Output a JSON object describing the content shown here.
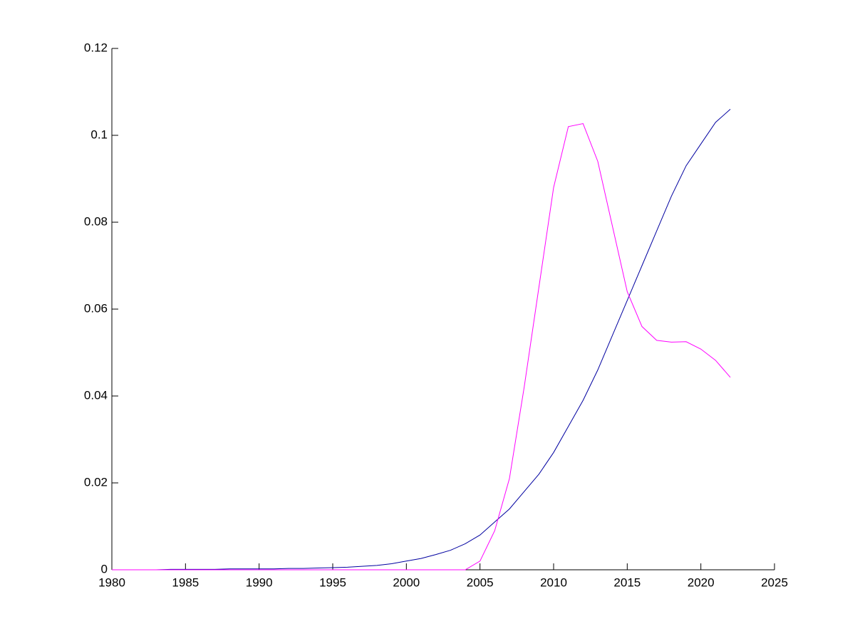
{
  "chart_data": {
    "type": "line",
    "x": [
      1980,
      1981,
      1982,
      1983,
      1984,
      1985,
      1986,
      1987,
      1988,
      1989,
      1990,
      1991,
      1992,
      1993,
      1994,
      1995,
      1996,
      1997,
      1998,
      1999,
      2000,
      2001,
      2002,
      2003,
      2004,
      2005,
      2006,
      2007,
      2008,
      2009,
      2010,
      2011,
      2012,
      2013,
      2014,
      2015,
      2016,
      2017,
      2018,
      2019,
      2020,
      2021,
      2022
    ],
    "series": [
      {
        "color": "#0000a0",
        "values": [
          0,
          0,
          0,
          0,
          0.0001,
          0.0001,
          0.0001,
          0.0001,
          0.0002,
          0.0002,
          0.0002,
          0.0002,
          0.0003,
          0.0003,
          0.0004,
          0.0005,
          0.0006,
          0.0008,
          0.001,
          0.0014,
          0.002,
          0.0026,
          0.0035,
          0.0045,
          0.006,
          0.008,
          0.011,
          0.014,
          0.018,
          0.022,
          0.027,
          0.033,
          0.039,
          0.046,
          0.054,
          0.062,
          0.07,
          0.078,
          0.086,
          0.093,
          0.098,
          0.103,
          0.106
        ]
      },
      {
        "color": "#ff00ff",
        "values": [
          0,
          0,
          0,
          0,
          0,
          0,
          0,
          0,
          0,
          0,
          0,
          0,
          0,
          0,
          0,
          0,
          0,
          0,
          0,
          0,
          0,
          0,
          0,
          0,
          0,
          0.002,
          0.009,
          0.021,
          0.042,
          0.065,
          0.088,
          0.102,
          0.1027,
          0.094,
          0.079,
          0.064,
          0.056,
          0.0528,
          0.0524,
          0.0525,
          0.0508,
          0.0482,
          0.0443
        ]
      }
    ],
    "xlim": [
      1980,
      2025
    ],
    "xticks": [
      1980,
      1985,
      1990,
      1995,
      2000,
      2005,
      2010,
      2015,
      2020,
      2025
    ],
    "ylim": [
      0,
      0.12
    ],
    "yticks": [
      0,
      0.02,
      0.04,
      0.06,
      0.08,
      0.1,
      0.12
    ]
  }
}
